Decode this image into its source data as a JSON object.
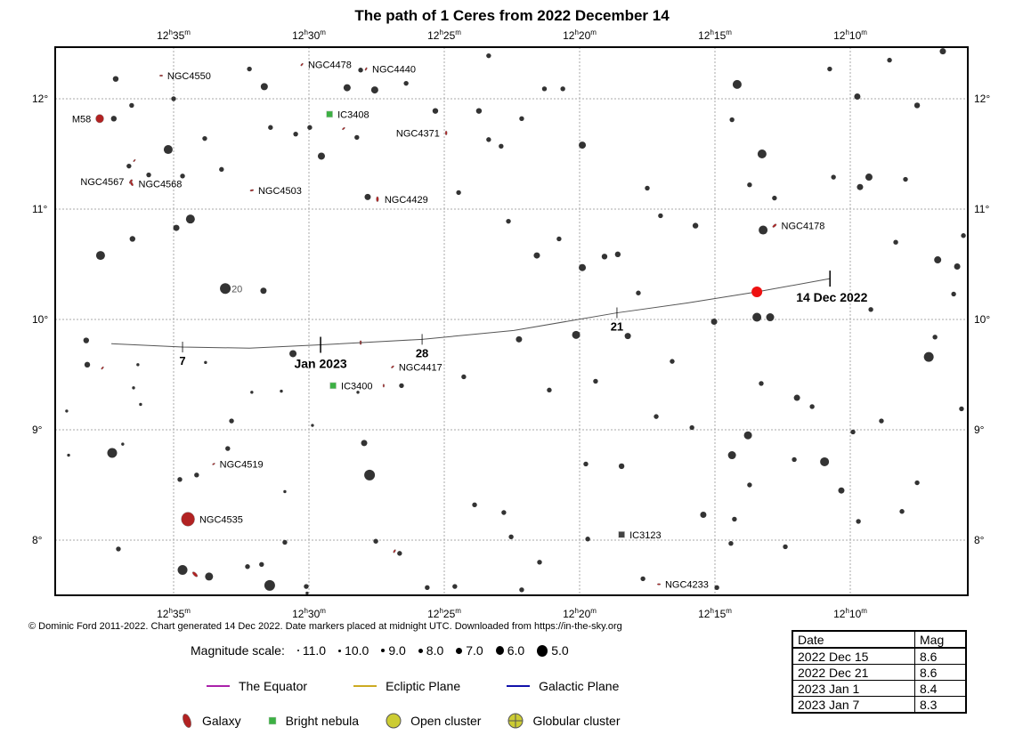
{
  "title": "The path of 1 Ceres from 2022 December 14",
  "credit": "© Dominic Ford 2011-2022. Chart generated 14 Dec 2022. Date markers placed at midnight UTC. Downloaded from https://in-the-sky.org",
  "colors": {
    "star": "#333333",
    "galaxy": "#b22222",
    "nebula": "#3cb043",
    "path": "#555555",
    "ceres": "#ee1111",
    "equator": "#aa22aa",
    "ecliptic": "#ccaa22",
    "galactic": "#1111aa",
    "open_cluster": "#cccc33"
  },
  "axes": {
    "ra_ticks": [
      {
        "ra": 35,
        "label": "12h35m"
      },
      {
        "ra": 30,
        "label": "12h30m"
      },
      {
        "ra": 25,
        "label": "12h25m"
      },
      {
        "ra": 20,
        "label": "12h20m"
      },
      {
        "ra": 15,
        "label": "12h15m"
      },
      {
        "ra": 10,
        "label": "12h10m"
      }
    ],
    "dec_ticks": [
      {
        "dec": 12,
        "label": "12°"
      },
      {
        "dec": 11,
        "label": "11°"
      },
      {
        "dec": 10,
        "label": "10°"
      },
      {
        "dec": 9,
        "label": "9°"
      },
      {
        "dec": 8,
        "label": "8°"
      }
    ],
    "ra_unit": "minutes past 12h",
    "ra_range": [
      39.7,
      6.0
    ],
    "dec_range": [
      7.47,
      12.45
    ]
  },
  "path": {
    "points": [
      [
        10.75,
        10.37
      ],
      [
        13.45,
        10.25
      ],
      [
        16.0,
        10.15
      ],
      [
        18.62,
        10.06
      ],
      [
        22.43,
        9.9
      ],
      [
        25.82,
        9.82
      ],
      [
        29.57,
        9.77
      ],
      [
        32.2,
        9.74
      ],
      [
        34.67,
        9.75
      ],
      [
        37.3,
        9.78
      ]
    ],
    "current": {
      "ra": 13.45,
      "dec": 10.25
    },
    "markers": [
      {
        "ra": 10.75,
        "dec": 10.37,
        "label": "14 Dec 2022",
        "major": true
      },
      {
        "ra": 18.62,
        "dec": 10.06,
        "label": "21",
        "major": false
      },
      {
        "ra": 25.82,
        "dec": 9.82,
        "label": "28",
        "major": false
      },
      {
        "ra": 29.57,
        "dec": 9.77,
        "label": "Jan 2023",
        "major": true
      },
      {
        "ra": 34.67,
        "dec": 9.75,
        "label": "7",
        "major": false
      }
    ]
  },
  "labelled_star": {
    "ra": 33.09,
    "dec": 10.28,
    "label": "20"
  },
  "dso": [
    {
      "name": "NGC4550",
      "type": "galaxy",
      "ra": 35.46,
      "dec": 12.21,
      "major": 1.8,
      "pa": 90
    },
    {
      "name": "M58",
      "type": "galaxy",
      "ra": 37.73,
      "dec": 11.82,
      "major": 4.5,
      "pa": 0
    },
    {
      "name": "NGC4567",
      "type": "galaxy",
      "ra": 36.58,
      "dec": 11.25,
      "major": 2.5,
      "pa": 30
    },
    {
      "name": "NGC4568",
      "type": "galaxy",
      "ra": 36.55,
      "dec": 11.23,
      "major": 2.5,
      "pa": 150
    },
    {
      "name": "NGC4503",
      "type": "galaxy",
      "ra": 32.11,
      "dec": 11.17,
      "major": 2.0,
      "pa": 80
    },
    {
      "name": "NGC4478",
      "type": "galaxy",
      "ra": 30.26,
      "dec": 12.31,
      "major": 1.8,
      "pa": 40
    },
    {
      "name": "NGC4440",
      "type": "galaxy",
      "ra": 27.89,
      "dec": 12.27,
      "major": 1.8,
      "pa": 30
    },
    {
      "name": "IC3408",
      "type": "nebula",
      "ra": 29.24,
      "dec": 11.86
    },
    {
      "name": "NGC4371",
      "type": "galaxy",
      "ra": 24.93,
      "dec": 11.69,
      "major": 2.2,
      "pa": 0
    },
    {
      "name": "NGC4429",
      "type": "galaxy",
      "ra": 27.47,
      "dec": 11.09,
      "major": 2.8,
      "pa": 0
    },
    {
      "name": "NGC4178",
      "type": "galaxy",
      "ra": 12.8,
      "dec": 10.85,
      "major": 2.5,
      "pa": 50
    },
    {
      "name": "NGC4417",
      "type": "galaxy",
      "ra": 26.91,
      "dec": 9.57,
      "major": 1.8,
      "pa": 50
    },
    {
      "name": "IC3400",
      "type": "nebula",
      "ra": 29.11,
      "dec": 9.4
    },
    {
      "name": "NGC4519",
      "type": "galaxy",
      "ra": 33.52,
      "dec": 8.69,
      "major": 1.6,
      "pa": 60
    },
    {
      "name": "NGC4535",
      "type": "galaxy",
      "ra": 34.47,
      "dec": 8.19,
      "major": 7.5,
      "pa": 0
    },
    {
      "name": "IC3123",
      "type": "dark",
      "ra": 18.45,
      "dec": 8.05
    },
    {
      "name": "NGC4233",
      "type": "galaxy",
      "ra": 17.07,
      "dec": 7.6,
      "major": 1.8,
      "pa": 90
    },
    {
      "name": "",
      "type": "galaxy",
      "ra": 37.63,
      "dec": 9.56,
      "major": 1.8,
      "pa": 40
    },
    {
      "name": "",
      "type": "galaxy",
      "ra": 36.45,
      "dec": 11.44,
      "major": 1.6,
      "pa": 40
    },
    {
      "name": "",
      "type": "galaxy",
      "ra": 28.72,
      "dec": 11.73,
      "major": 1.8,
      "pa": 50
    },
    {
      "name": "",
      "type": "galaxy",
      "ra": 28.09,
      "dec": 9.79,
      "major": 2.2,
      "pa": 0
    },
    {
      "name": "",
      "type": "galaxy",
      "ra": 27.24,
      "dec": 9.4,
      "major": 1.8,
      "pa": 0
    },
    {
      "name": "",
      "type": "galaxy",
      "ra": 26.84,
      "dec": 7.9,
      "major": 2.0,
      "pa": 30
    },
    {
      "name": "",
      "type": "galaxy",
      "ra": 34.21,
      "dec": 7.69,
      "major": 3.5,
      "pa": 135
    }
  ],
  "stars": [
    [
      33.09,
      10.28,
      5.5
    ],
    [
      31.45,
      7.59,
      5.5
    ],
    [
      27.76,
      8.59,
      5.5
    ],
    [
      7.1,
      9.66,
      6
    ],
    [
      37.27,
      8.79,
      6
    ],
    [
      34.67,
      7.73,
      6
    ],
    [
      35.2,
      11.54,
      6.5
    ],
    [
      34.38,
      10.91,
      6.5
    ],
    [
      37.7,
      10.58,
      6.5
    ],
    [
      14.18,
      12.13,
      6.5
    ],
    [
      13.26,
      11.5,
      6.5
    ],
    [
      13.22,
      10.81,
      6.5
    ],
    [
      13.45,
      10.02,
      6.5
    ],
    [
      12.96,
      10.02,
      7
    ],
    [
      10.95,
      8.71,
      6.5
    ],
    [
      14.37,
      8.77,
      7
    ],
    [
      13.78,
      8.95,
      7
    ],
    [
      33.69,
      7.67,
      7
    ],
    [
      31.65,
      12.11,
      7.5
    ],
    [
      28.59,
      12.1,
      7.5
    ],
    [
      27.57,
      12.08,
      7.5
    ],
    [
      29.54,
      11.48,
      7.5
    ],
    [
      19.9,
      11.58,
      7.5
    ],
    [
      19.9,
      10.47,
      7.5
    ],
    [
      20.13,
      9.86,
      7
    ],
    [
      21.58,
      10.58,
      8
    ],
    [
      9.31,
      11.29,
      7.5
    ],
    [
      9.64,
      11.2,
      8
    ],
    [
      6.77,
      10.54,
      7.5
    ],
    [
      6.05,
      10.48,
      8
    ],
    [
      30.59,
      9.69,
      7.5
    ],
    [
      31.68,
      10.26,
      8
    ],
    [
      34.9,
      10.83,
      8
    ],
    [
      27.83,
      11.11,
      8
    ],
    [
      27.96,
      8.88,
      8
    ],
    [
      22.24,
      9.82,
      8
    ],
    [
      18.22,
      9.85,
      8
    ],
    [
      15.03,
      9.98,
      8
    ],
    [
      18.45,
      8.67,
      8.5
    ],
    [
      15.43,
      8.23,
      8
    ],
    [
      11.97,
      9.29,
      8
    ],
    [
      10.33,
      8.45,
      8
    ],
    [
      9.74,
      12.02,
      8
    ],
    [
      7.53,
      11.94,
      8.5
    ],
    [
      6.58,
      12.43,
      8
    ],
    [
      37.14,
      12.18,
      8.5
    ],
    [
      37.21,
      11.82,
      8.5
    ],
    [
      36.52,
      10.73,
      8.5
    ],
    [
      38.19,
      9.59,
      8.5
    ],
    [
      38.23,
      9.81,
      8.5
    ],
    [
      18.59,
      10.59,
      8.5
    ],
    [
      19.08,
      10.57,
      8.5
    ],
    [
      15.72,
      10.85,
      8.5
    ],
    [
      25.33,
      11.89,
      8.5
    ],
    [
      23.72,
      11.89,
      8.5
    ],
    [
      26.58,
      9.4,
      9
    ],
    [
      24.28,
      9.48,
      9
    ],
    [
      21.12,
      9.36,
      9
    ],
    [
      19.41,
      9.44,
      9
    ],
    [
      16.58,
      9.62,
      9
    ],
    [
      17.83,
      10.24,
      9
    ],
    [
      17.17,
      9.12,
      9
    ],
    [
      15.85,
      9.02,
      9
    ],
    [
      22.8,
      8.25,
      9
    ],
    [
      22.53,
      8.03,
      9
    ],
    [
      21.48,
      7.8,
      9
    ],
    [
      23.88,
      8.32,
      9
    ],
    [
      26.65,
      7.88,
      9
    ],
    [
      27.53,
      7.99,
      9
    ],
    [
      33.0,
      8.83,
      9
    ],
    [
      32.86,
      9.08,
      9
    ],
    [
      34.15,
      8.59,
      9
    ],
    [
      34.77,
      8.55,
      9
    ],
    [
      36.65,
      11.39,
      9
    ],
    [
      35.92,
      11.31,
      9
    ],
    [
      34.67,
      11.3,
      9
    ],
    [
      33.85,
      11.64,
      9
    ],
    [
      33.23,
      11.36,
      9
    ],
    [
      31.42,
      11.74,
      9
    ],
    [
      30.49,
      11.68,
      9
    ],
    [
      29.97,
      11.74,
      9
    ],
    [
      28.23,
      11.65,
      9
    ],
    [
      23.36,
      11.63,
      9
    ],
    [
      22.14,
      11.82,
      9
    ],
    [
      22.9,
      11.57,
      9
    ],
    [
      24.47,
      11.15,
      9
    ],
    [
      22.63,
      10.89,
      9
    ],
    [
      20.76,
      10.73,
      9
    ],
    [
      17.5,
      11.19,
      9
    ],
    [
      17.01,
      10.94,
      9
    ],
    [
      14.37,
      11.81,
      9
    ],
    [
      13.72,
      11.22,
      9
    ],
    [
      12.8,
      11.1,
      9
    ],
    [
      10.62,
      11.29,
      9
    ],
    [
      8.32,
      10.7,
      9
    ],
    [
      5.82,
      10.76,
      9
    ],
    [
      6.18,
      10.23,
      9
    ],
    [
      9.24,
      10.09,
      9
    ],
    [
      6.87,
      9.84,
      9
    ],
    [
      5.89,
      9.19,
      9
    ],
    [
      8.85,
      9.08,
      9
    ],
    [
      9.9,
      8.98,
      9
    ],
    [
      11.41,
      9.21,
      9
    ],
    [
      13.29,
      9.42,
      9
    ],
    [
      12.07,
      8.73,
      9
    ],
    [
      9.7,
      8.17,
      9
    ],
    [
      8.09,
      8.26,
      9
    ],
    [
      7.53,
      8.52,
      9
    ],
    [
      12.4,
      7.94,
      9
    ],
    [
      13.72,
      8.5,
      9
    ],
    [
      14.28,
      8.19,
      9
    ],
    [
      14.41,
      7.97,
      9
    ],
    [
      14.93,
      7.57,
      9
    ],
    [
      17.66,
      7.65,
      9
    ],
    [
      19.77,
      8.69,
      9
    ],
    [
      19.7,
      8.01,
      9
    ],
    [
      22.14,
      7.55,
      9
    ],
    [
      24.61,
      7.58,
      9
    ],
    [
      25.63,
      7.57,
      9
    ],
    [
      30.1,
      7.58,
      9
    ],
    [
      32.27,
      7.76,
      9
    ],
    [
      31.75,
      7.78,
      9
    ],
    [
      30.89,
      7.98,
      9
    ],
    [
      37.04,
      7.92,
      9
    ],
    [
      38.95,
      9.17,
      10
    ],
    [
      38.88,
      8.77,
      10
    ],
    [
      36.88,
      8.87,
      10
    ],
    [
      36.22,
      9.23,
      10
    ],
    [
      36.48,
      9.38,
      10
    ],
    [
      36.32,
      9.59,
      10
    ],
    [
      33.82,
      9.61,
      10
    ],
    [
      32.11,
      9.34,
      10
    ],
    [
      31.02,
      9.35,
      10
    ],
    [
      29.87,
      9.04,
      10
    ],
    [
      28.19,
      9.34,
      10
    ],
    [
      30.89,
      8.44,
      10
    ],
    [
      30.07,
      7.52,
      10
    ],
    [
      32.2,
      12.27,
      9
    ],
    [
      26.41,
      12.14,
      9
    ],
    [
      20.62,
      12.09,
      9
    ],
    [
      21.3,
      12.09,
      9
    ],
    [
      35.0,
      12.0,
      9
    ],
    [
      36.55,
      11.94,
      9
    ],
    [
      28.09,
      12.26,
      9
    ],
    [
      23.36,
      12.39,
      9
    ],
    [
      10.76,
      12.27,
      9
    ],
    [
      8.55,
      12.35,
      9
    ],
    [
      7.96,
      11.27,
      9
    ]
  ],
  "legend": {
    "magnitude_label": "Magnitude scale:",
    "magnitudes": [
      "11.0",
      "10.0",
      "9.0",
      "8.0",
      "7.0",
      "6.0",
      "5.0"
    ],
    "lines": [
      "The Equator",
      "Ecliptic Plane",
      "Galactic Plane"
    ],
    "types": [
      "Galaxy",
      "Bright nebula",
      "Open cluster",
      "Globular cluster"
    ]
  },
  "mag_table": {
    "headers": [
      "Date",
      "Mag"
    ],
    "rows": [
      [
        "2022 Dec 15",
        "8.6"
      ],
      [
        "2022 Dec 21",
        "8.6"
      ],
      [
        "2023 Jan 1",
        "8.4"
      ],
      [
        "2023 Jan 7",
        "8.3"
      ]
    ]
  }
}
